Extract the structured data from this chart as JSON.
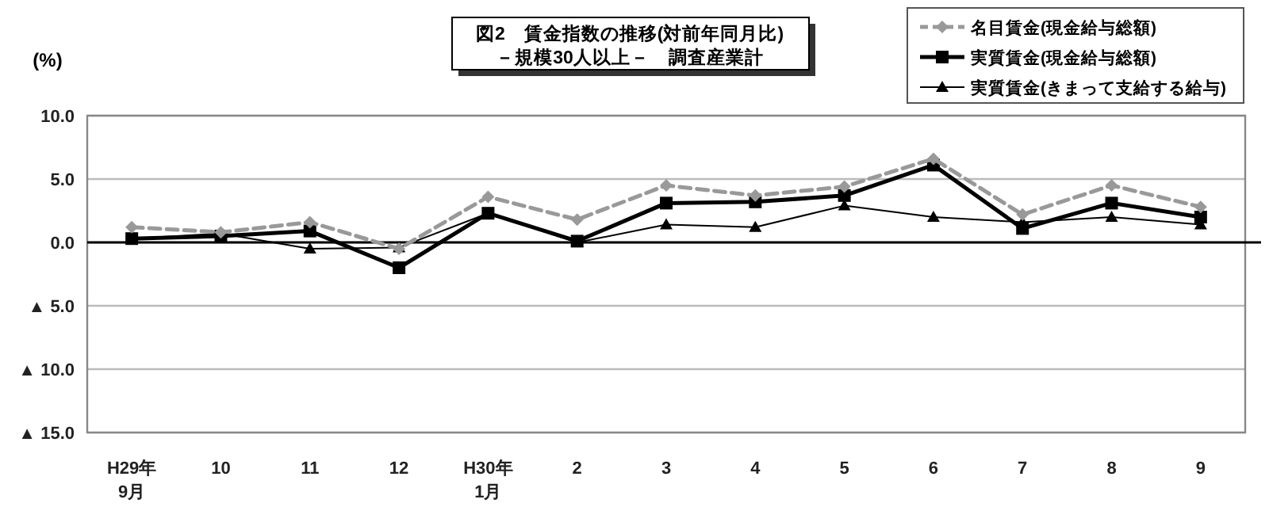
{
  "chart_data": {
    "type": "line",
    "title": "図2　賃金指数の推移(対前年同月比)",
    "subtitle": "－規模30人以上－　調査産業計",
    "ylabel": "(%)",
    "categories": [
      "H29年\n9月",
      "10",
      "11",
      "12",
      "H30年\n1月",
      "2",
      "3",
      "4",
      "5",
      "6",
      "7",
      "8",
      "9"
    ],
    "series": [
      {
        "name": "名目賃金(現金給与総額)",
        "color": "#999999",
        "marker": "diamond",
        "line_style": "dashed",
        "values": [
          1.2,
          0.8,
          1.6,
          -0.5,
          3.6,
          1.8,
          4.5,
          3.7,
          4.4,
          6.6,
          2.2,
          4.5,
          2.8
        ]
      },
      {
        "name": "実質賃金(現金給与総額)",
        "color": "#000000",
        "marker": "square",
        "line_style": "solid",
        "values": [
          0.3,
          0.5,
          0.9,
          -2.0,
          2.3,
          0.1,
          3.1,
          3.2,
          3.7,
          6.1,
          1.1,
          3.1,
          2.0
        ]
      },
      {
        "name": "実質賃金(きまって支給する給与)",
        "color": "#000000",
        "marker": "triangle",
        "line_style": "solid",
        "values": [
          0.3,
          0.7,
          -0.5,
          -0.4,
          2.3,
          0.0,
          1.4,
          1.2,
          2.9,
          2.0,
          1.6,
          2.0,
          1.4
        ]
      }
    ],
    "ylim": [
      -15,
      10
    ],
    "yticks": [
      {
        "value": 10,
        "label": "10.0"
      },
      {
        "value": 5,
        "label": "5.0"
      },
      {
        "value": 0,
        "label": "0.0"
      },
      {
        "value": -5,
        "label": "▲ 5.0"
      },
      {
        "value": -10,
        "label": "▲ 10.0"
      },
      {
        "value": -15,
        "label": "▲ 15.0"
      }
    ],
    "grid": "y",
    "legend": "top right",
    "ref_lines": [
      {
        "axis": "y",
        "value": 0,
        "color": "#000000"
      }
    ]
  }
}
